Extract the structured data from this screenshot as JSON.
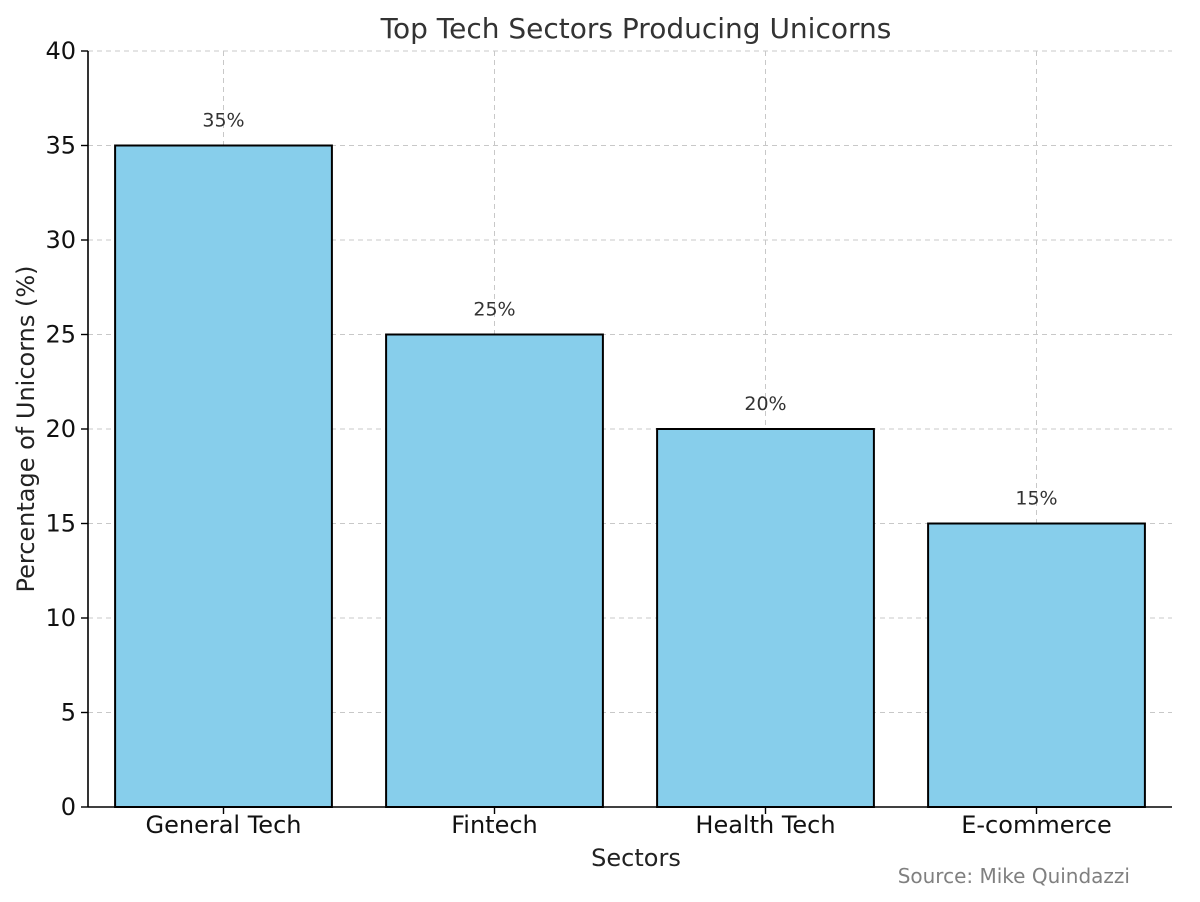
{
  "chart_data": {
    "type": "bar",
    "title": "Top Tech Sectors Producing Unicorns",
    "xlabel": "Sectors",
    "ylabel": "Percentage of Unicorns (%)",
    "categories": [
      "General Tech",
      "Fintech",
      "Health Tech",
      "E-commerce"
    ],
    "values": [
      35,
      25,
      20,
      15
    ],
    "data_labels": [
      "35%",
      "25%",
      "20%",
      "15%"
    ],
    "ylim": [
      0,
      40
    ],
    "yticks": [
      0,
      5,
      10,
      15,
      20,
      25,
      30,
      35,
      40
    ],
    "grid": true,
    "bar_color": "#87CEEB",
    "edge_color": "#000000",
    "source": "Source: Mike Quindazzi"
  }
}
